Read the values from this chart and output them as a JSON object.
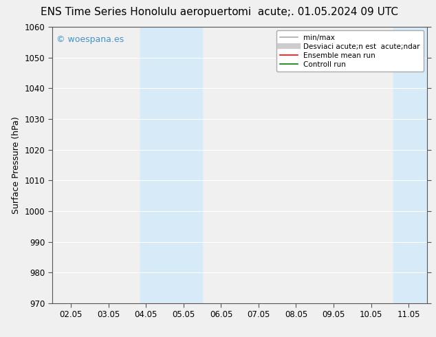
{
  "title_left": "ENS Time Series Honolulu aeropuerto",
  "title_right": "mi  acute;. 01.05.2024 09 UTC",
  "ylabel": "Surface Pressure (hPa)",
  "ylim": [
    970,
    1060
  ],
  "yticks": [
    970,
    980,
    990,
    1000,
    1010,
    1020,
    1030,
    1040,
    1050,
    1060
  ],
  "xtick_labels": [
    "02.05",
    "03.05",
    "04.05",
    "05.05",
    "06.05",
    "07.05",
    "08.05",
    "09.05",
    "10.05",
    "11.05"
  ],
  "xtick_positions": [
    0,
    1,
    2,
    3,
    4,
    5,
    6,
    7,
    8,
    9
  ],
  "xlim": [
    -0.5,
    9.5
  ],
  "blue_bands": [
    {
      "x_start": 1.85,
      "x_end": 2.5
    },
    {
      "x_start": 2.5,
      "x_end": 3.5
    },
    {
      "x_start": 8.6,
      "x_end": 9.5
    }
  ],
  "blue_band_color": "#d6eaf8",
  "watermark_text": "© woespana.es",
  "watermark_color": "#4a90c4",
  "legend_items": [
    {
      "label": "min/max",
      "color": "#aaaaaa",
      "lw": 1.2
    },
    {
      "label": "Desviaci acute;n est  acute;ndar",
      "color": "#cccccc",
      "lw": 6
    },
    {
      "label": "Ensemble mean run",
      "color": "red",
      "lw": 1.2
    },
    {
      "label": "Controll run",
      "color": "green",
      "lw": 1.2
    }
  ],
  "plot_bg_color": "#f0f0f0",
  "background_color": "#f0f0f0",
  "title_fontsize": 11,
  "label_fontsize": 9,
  "tick_fontsize": 8.5,
  "grid_color": "#ffffff",
  "grid_lw": 0.8
}
